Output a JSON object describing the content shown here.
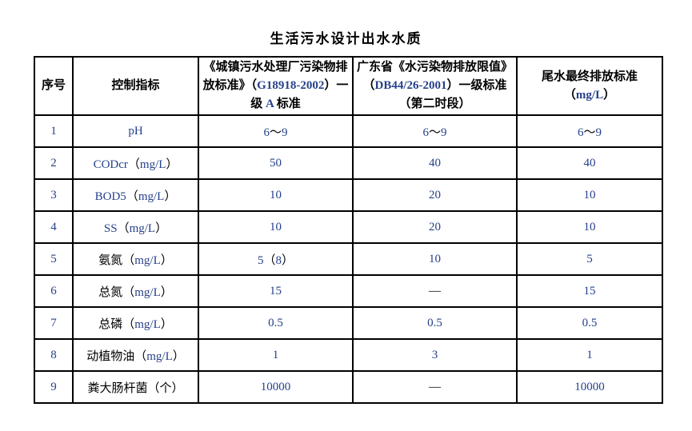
{
  "title": "生活污水设计出水水质",
  "colors": {
    "text": "#000000",
    "latin_text": "#27408b",
    "border": "#000000",
    "background": "#ffffff"
  },
  "table": {
    "headers": [
      "序号",
      "控制指标",
      "《城镇污水处理厂污染物排放标准》（G18918-2002）一级 A 标准",
      "广东省《水污染物排放限值》（DB44/26-2001）一级标准（第二时段）",
      "尾水最终排放标准\n（mg/L）"
    ],
    "rows": [
      [
        "1",
        "pH",
        "6～9",
        "6～9",
        "6～9"
      ],
      [
        "2",
        "CODcr（mg/L）",
        "50",
        "40",
        "40"
      ],
      [
        "3",
        "BOD5（mg/L）",
        "10",
        "20",
        "10"
      ],
      [
        "4",
        "SS（mg/L）",
        "10",
        "20",
        "10"
      ],
      [
        "5",
        "氨氮（mg/L）",
        "5（8）",
        "10",
        "5"
      ],
      [
        "6",
        "总氮（mg/L）",
        "15",
        "—",
        "15"
      ],
      [
        "7",
        "总磷（mg/L）",
        "0.5",
        "0.5",
        "0.5"
      ],
      [
        "8",
        "动植物油（mg/L）",
        "1",
        "3",
        "1"
      ],
      [
        "9",
        "粪大肠杆菌（个）",
        "10000",
        "—",
        "10000"
      ]
    ]
  }
}
